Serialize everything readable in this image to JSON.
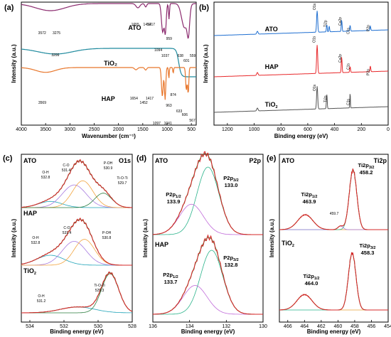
{
  "chart_data": [
    {
      "panel": "(a)",
      "type": "line",
      "xlabel": "Wavenumber (cm⁻¹)",
      "ylabel": "Intensity (a.u.)",
      "xlim": [
        4000,
        400
      ],
      "xticks": [
        "4000",
        "3500",
        "3000",
        "2500",
        "2000",
        "1500",
        "1000",
        "500"
      ],
      "series": [
        {
          "name": "ATO",
          "color": "#8b2a6e",
          "peaks": [
            "3572",
            "3275",
            "1655",
            "1452",
            "1417",
            "1094",
            "1037",
            "959",
            "638",
            "601",
            "559"
          ]
        },
        {
          "name": "TiO₂",
          "color": "#1f8a9e",
          "peaks": [
            "3299"
          ]
        },
        {
          "name": "HAP",
          "color": "#e8762b",
          "peaks": [
            "3569",
            "1654",
            "1452",
            "1417",
            "1097",
            "1041",
            "963",
            "874",
            "633",
            "606",
            "567"
          ]
        }
      ]
    },
    {
      "panel": "(b)",
      "type": "line",
      "xlabel": "Binding energy (eV)",
      "ylabel": "Intensity (a.u.)",
      "xlim": [
        1300,
        0
      ],
      "xticks": [
        "1200",
        "1000",
        "800",
        "600",
        "400",
        "200",
        "0"
      ],
      "series": [
        {
          "name": "ATO",
          "color": "#1f6fd1",
          "labels": [
            "O1s",
            "Ti2p",
            "Ca2p",
            "C1s",
            "P2p"
          ]
        },
        {
          "name": "HAP",
          "color": "#e8282b",
          "labels": [
            "O1s",
            "Ca2p",
            "C1s",
            "P2p"
          ]
        },
        {
          "name": "TiO₂",
          "color": "#555555",
          "labels": [
            "O1s",
            "Ti2p",
            "C1s"
          ]
        }
      ]
    },
    {
      "panel": "(c)",
      "type": "line",
      "title": "O1s",
      "xlabel": "Binding energy (eV)",
      "ylabel": "Intensity (a.u.)",
      "xlim": [
        534.5,
        528
      ],
      "xticks": [
        "534",
        "532",
        "530",
        "528"
      ],
      "groups": [
        {
          "name": "ATO",
          "peaks": [
            {
              "label": "O-H",
              "value": "532.8"
            },
            {
              "label": "C-O",
              "value": "531.4"
            },
            {
              "label": "P-OH",
              "value": "530.9"
            },
            {
              "label": "Ti-O-Ti",
              "value": "529.7"
            }
          ]
        },
        {
          "name": "HAP",
          "peaks": [
            {
              "label": "C-O",
              "value": "531.4"
            },
            {
              "label": "O-H",
              "value": "532.8"
            },
            {
              "label": "P-OH",
              "value": "530.8"
            }
          ]
        },
        {
          "name": "TiO₂",
          "peaks": [
            {
              "label": "Ti-O-Ti",
              "value": "529.3"
            },
            {
              "label": "O-H",
              "value": "531.2"
            }
          ]
        }
      ]
    },
    {
      "panel": "(d)",
      "type": "line",
      "title": "P2p",
      "xlabel": "Binding energy (eV)",
      "ylabel": "Intensity (a.u.)",
      "xlim": [
        136,
        130
      ],
      "xticks": [
        "136",
        "134",
        "132",
        "130"
      ],
      "groups": [
        {
          "name": "ATO",
          "peaks": [
            {
              "label": "P2p",
              "sub": "3/2",
              "value": "133.0"
            },
            {
              "label": "P2p",
              "sub": "1/2",
              "value": "133.9"
            }
          ]
        },
        {
          "name": "HAP",
          "peaks": [
            {
              "label": "P2p",
              "sub": "3/2",
              "value": "132.8"
            },
            {
              "label": "P2p",
              "sub": "1/2",
              "value": "133.7"
            }
          ]
        }
      ]
    },
    {
      "panel": "(e)",
      "type": "line",
      "title": "Ti2p",
      "xlabel": "Binding energy (eV)",
      "ylabel": "Intensity (a.u.)",
      "xlim": [
        467,
        454
      ],
      "xticks": [
        "466",
        "464",
        "462",
        "460",
        "458",
        "456",
        "454"
      ],
      "groups": [
        {
          "name": "ATO",
          "peaks": [
            {
              "label": "Ti2p",
              "sub": "3/2",
              "value": "458.2"
            },
            {
              "label": "Ti2p",
              "sub": "1/2",
              "value": "463.9"
            },
            {
              "label": "",
              "sub": "",
              "value": "459.7"
            }
          ]
        },
        {
          "name": "TiO₂",
          "peaks": [
            {
              "label": "Ti2p",
              "sub": "3/2",
              "value": "458.3"
            },
            {
              "label": "Ti2p",
              "sub": "1/2",
              "value": "464.0"
            }
          ]
        }
      ]
    }
  ]
}
